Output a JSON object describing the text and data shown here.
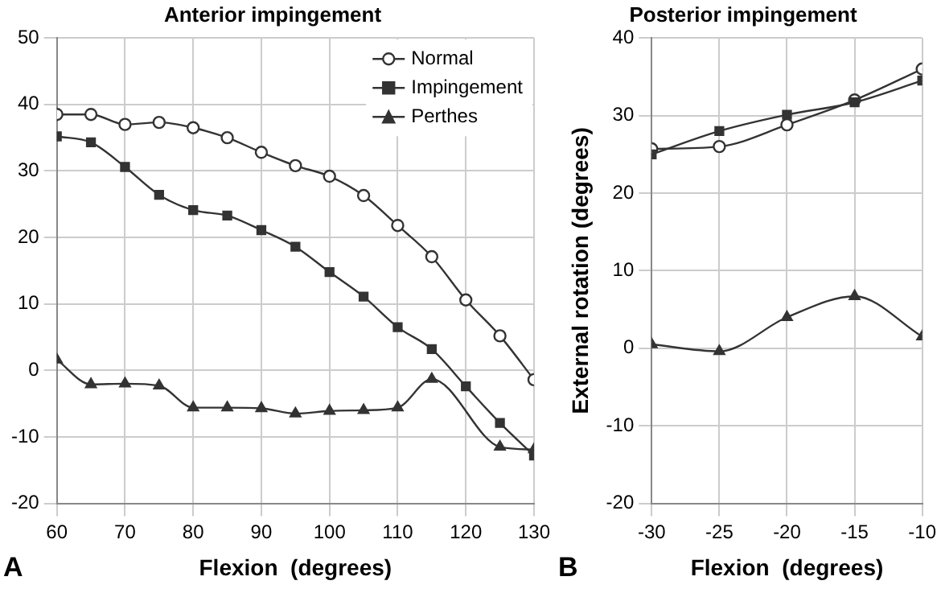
{
  "chart_data": [
    {
      "type": "line",
      "title": "Anterior impingement",
      "xlabel": "Flexion  (degrees)",
      "annotations": [
        "A"
      ],
      "x": [
        60,
        65,
        70,
        75,
        80,
        85,
        90,
        95,
        100,
        105,
        110,
        115,
        120,
        125,
        130
      ],
      "series": [
        {
          "name": "Normal",
          "color": "#333333",
          "marker": "circle",
          "values": [
            38.5,
            38.5,
            37,
            37.3,
            36.5,
            35,
            32.8,
            30.8,
            29.2,
            26.3,
            21.8,
            17.1,
            10.6,
            5.2,
            -1.4
          ]
        },
        {
          "name": "Impingement",
          "color": "#333333",
          "marker": "square",
          "values": [
            35.2,
            34.3,
            30.6,
            26.4,
            24.1,
            23.3,
            21.1,
            18.6,
            14.8,
            11.1,
            6.5,
            3.2,
            -2.4,
            -7.9,
            -12.8
          ]
        },
        {
          "name": "Perthes",
          "color": "#333333",
          "marker": "triangle",
          "values": [
            1.6,
            -2.1,
            -2,
            -2.3,
            -5.6,
            -5.6,
            -5.7,
            -6.5,
            -6.1,
            -6,
            -5.6,
            -1.3,
            null,
            -11.5,
            -11.9
          ]
        }
      ],
      "xlim": [
        60,
        130
      ],
      "xticks": [
        60,
        70,
        80,
        90,
        100,
        110,
        120,
        130
      ],
      "ylim": [
        -20,
        50
      ],
      "yticks": [
        -20,
        -10,
        0,
        10,
        20,
        30,
        40,
        50
      ],
      "grid": true,
      "legend": "top right"
    },
    {
      "type": "line",
      "title": "Posterior impingement",
      "xlabel": "Flexion  (degrees)",
      "ylabel": "External rotation (degrees)",
      "annotations": [
        "B"
      ],
      "x": [
        -30,
        -25,
        -20,
        -15,
        -10
      ],
      "series": [
        {
          "color": "#333333",
          "marker": "circle",
          "values": [
            25.7,
            26,
            28.8,
            32,
            36
          ]
        },
        {
          "color": "#333333",
          "marker": "square",
          "values": [
            25,
            28,
            30.1,
            31.7,
            34.5
          ]
        },
        {
          "color": "#333333",
          "marker": "triangle",
          "values": [
            0.5,
            -0.4,
            4,
            6.7,
            1.5
          ]
        }
      ],
      "xlim": [
        -30,
        -10
      ],
      "xticks": [
        -30,
        -25,
        -20,
        -15,
        -10
      ],
      "ylim": [
        -20,
        40
      ],
      "yticks": [
        -20,
        -10,
        0,
        10,
        20,
        30,
        40
      ],
      "grid": true
    }
  ]
}
